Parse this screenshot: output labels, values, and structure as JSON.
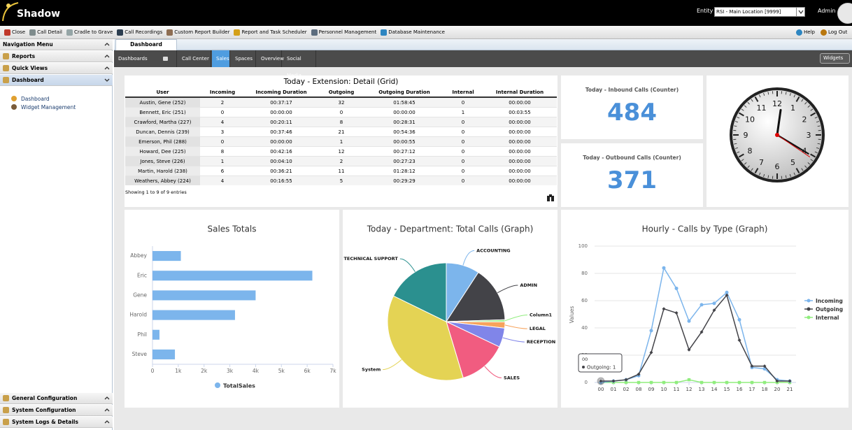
{
  "header": {
    "logo": "Shadow",
    "entity_label": "Entity",
    "entity_value": "RSI - Main Location [9999]",
    "user": "Admin"
  },
  "toolbar": {
    "items": [
      "Close",
      "Call Detail",
      "Cradle to Grave",
      "Call Recordings",
      "Custom Report Builder",
      "Report and Task Scheduler",
      "Personnel Management",
      "Database Maintenance"
    ],
    "right": [
      "Help",
      "Log Out"
    ]
  },
  "nav": {
    "title": "Navigation Menu",
    "sections": [
      "Reports",
      "Quick Views",
      "Dashboard"
    ],
    "dashboard_items": [
      "Dashboard",
      "Widget Management"
    ],
    "bottom_sections": [
      "General Configuration",
      "System Configuration",
      "System Logs & Details"
    ]
  },
  "page_tab": "Dashboard",
  "tabs": {
    "items": [
      "Dashboards",
      "Call Center",
      "Sales",
      "Spaces",
      "Overview",
      "Social Media"
    ],
    "active": 2,
    "widgets": "Widgets"
  },
  "table": {
    "title": "Today - Extension: Detail (Grid)",
    "columns": [
      "User",
      "Incoming",
      "Incoming Duration",
      "Outgoing",
      "Outgoing Duration",
      "Internal",
      "Internal Duration"
    ],
    "rows": [
      [
        "Austin, Gene (252)",
        "2",
        "00:37:17",
        "32",
        "01:58:45",
        "0",
        "00:00:00"
      ],
      [
        "Bennett, Eric (251)",
        "0",
        "00:00:00",
        "0",
        "00:00:00",
        "1",
        "00:03:55"
      ],
      [
        "Crawford, Martha (227)",
        "4",
        "00:20:11",
        "8",
        "00:28:31",
        "0",
        "00:00:00"
      ],
      [
        "Duncan, Dennis (239)",
        "3",
        "00:37:46",
        "21",
        "00:54:36",
        "0",
        "00:00:00"
      ],
      [
        "Emerson, Phil (288)",
        "0",
        "00:00:00",
        "1",
        "00:00:55",
        "0",
        "00:00:00"
      ],
      [
        "Howard, Dee (225)",
        "8",
        "00:42:16",
        "12",
        "00:27:12",
        "0",
        "00:00:00"
      ],
      [
        "Jones, Steve (226)",
        "1",
        "00:04:10",
        "2",
        "00:27:23",
        "0",
        "00:00:00"
      ],
      [
        "Martin, Harold (238)",
        "6",
        "00:36:21",
        "11",
        "01:28:12",
        "0",
        "00:00:00"
      ],
      [
        "Weathers, Abbey (224)",
        "4",
        "00:16:55",
        "5",
        "00:29:29",
        "0",
        "00:00:00"
      ]
    ],
    "footer": "Showing 1 to 9 of 9 entries"
  },
  "counters": [
    {
      "title": "Today - Inbound Calls (Counter)",
      "value": 484
    },
    {
      "title": "Today - Outbound Calls (Counter)",
      "value": 371
    }
  ],
  "clock": {
    "numerals": [
      12,
      1,
      2,
      3,
      4,
      5,
      6,
      7,
      8,
      9,
      10,
      11
    ]
  },
  "chart_data": [
    {
      "type": "bar",
      "orientation": "horizontal",
      "title": "Sales Totals",
      "categories": [
        "Abbey",
        "Eric",
        "Gene",
        "Harold",
        "Phil",
        "Steve"
      ],
      "series": [
        {
          "name": "TotalSales",
          "color": "#7cb5ec",
          "values": [
            1100,
            6200,
            4000,
            3200,
            270,
            870
          ]
        }
      ],
      "xlim": [
        0,
        7000
      ],
      "xticks": [
        0,
        {
          "value": 1000,
          "label": "1k"
        },
        {
          "value": 2000,
          "label": "2k"
        },
        {
          "value": 3000,
          "label": "3k"
        },
        {
          "value": 4000,
          "label": "4k"
        },
        {
          "value": 5000,
          "label": "5k"
        },
        {
          "value": 6000,
          "label": "6k"
        },
        {
          "value": 7000,
          "label": "7k"
        }
      ]
    },
    {
      "type": "pie",
      "title": "Today - Department: Total Calls (Graph)",
      "categories": [
        "ACCOUNTING",
        "ADMIN",
        "Column1",
        "LEGAL",
        "RECEPTION",
        "SALES",
        "System",
        "TECHNICAL SUPPORT"
      ],
      "values": [
        9.2,
        15.3,
        0.6,
        1.7,
        5.3,
        13.3,
        36.9,
        17.8
      ],
      "colors": [
        "#7cb5ec",
        "#434348",
        "#90ed7d",
        "#f7a35c",
        "#8085e9",
        "#f15c80",
        "#e4d354",
        "#2b908f"
      ]
    },
    {
      "type": "line",
      "title": "Hourly - Calls by Type (Graph)",
      "y_label": "Values",
      "categories": [
        "00",
        "01",
        "02",
        "08",
        "09",
        "10",
        "11",
        "12",
        "13",
        "14",
        "15",
        "16",
        "17",
        "18",
        "20",
        "21"
      ],
      "series": [
        {
          "name": "Incoming",
          "color": "#7cb5ec",
          "values": [
            0,
            1,
            2,
            5,
            38,
            84,
            69,
            45,
            57,
            58,
            66,
            46,
            11,
            10,
            2,
            1
          ]
        },
        {
          "name": "Outgoing",
          "color": "#434348",
          "values": [
            1,
            1,
            2,
            6,
            22,
            54,
            51,
            24,
            37,
            53,
            64,
            31,
            12,
            12,
            1,
            1
          ]
        },
        {
          "name": "Internal",
          "color": "#90ed7d",
          "values": [
            0,
            0,
            0,
            0,
            0,
            0,
            0,
            2,
            0,
            0,
            0,
            0,
            0,
            0,
            0,
            0
          ]
        }
      ],
      "ylim": [
        0,
        100
      ],
      "yticks": [
        0,
        20,
        40,
        60,
        80,
        100
      ],
      "grid": true,
      "legend": "right",
      "tooltip": {
        "title": "00",
        "text": "Outgoing: 1"
      }
    }
  ]
}
